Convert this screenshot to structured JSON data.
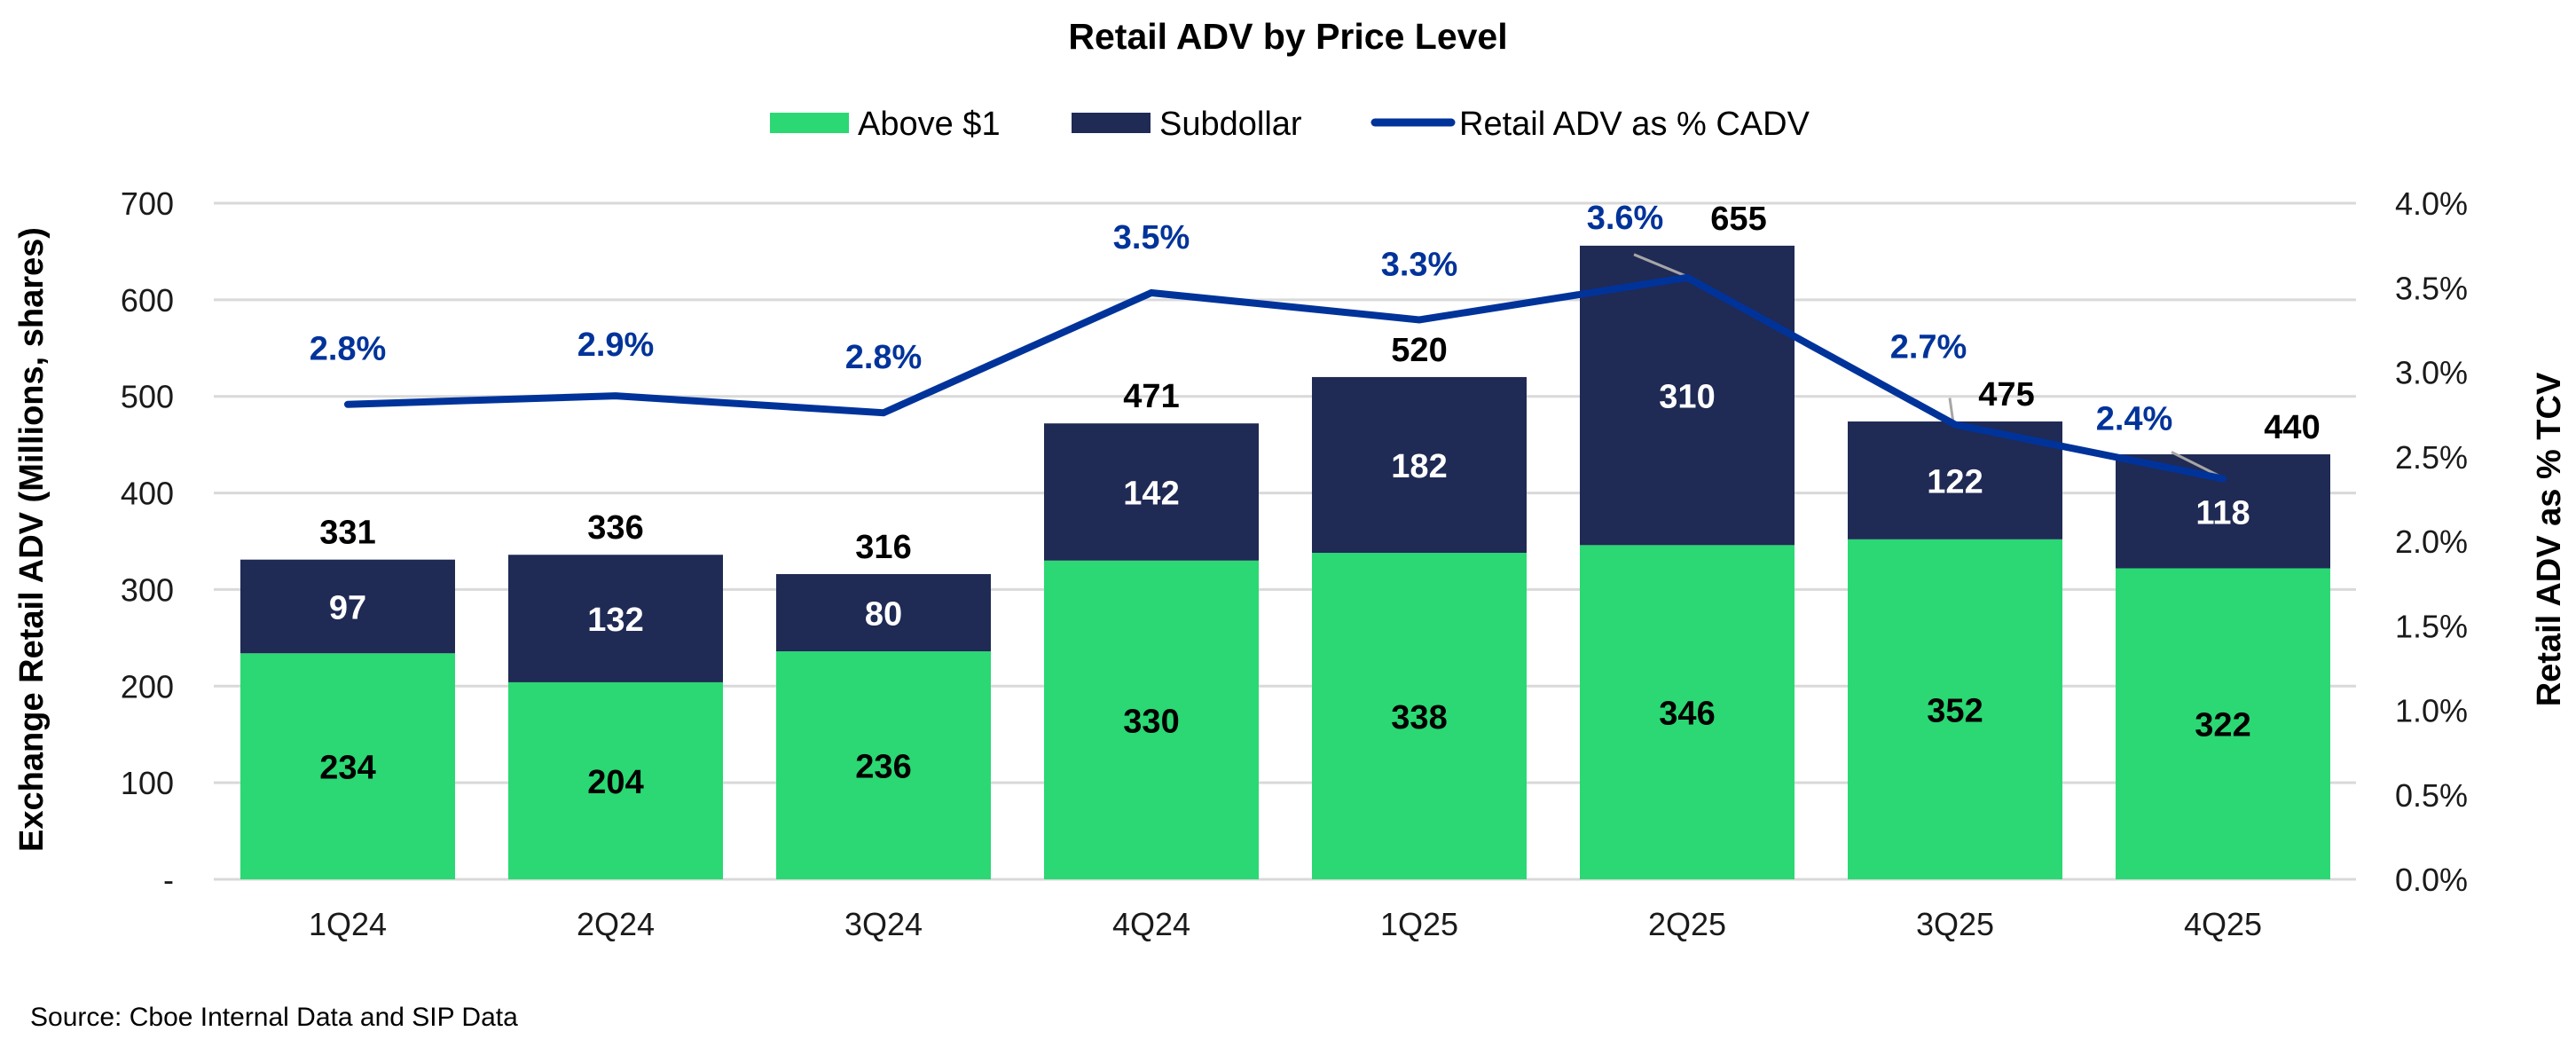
{
  "chart_data": {
    "type": "bar",
    "subtype": "stacked-bar-with-line",
    "title": "Retail ADV by Price Level",
    "categories": [
      "1Q24",
      "2Q24",
      "3Q24",
      "4Q24",
      "1Q25",
      "2Q25",
      "3Q25",
      "4Q25"
    ],
    "series": [
      {
        "name": "Above $1",
        "type": "bar",
        "axis": "left",
        "color": "#2BD873",
        "values": [
          234,
          204,
          236,
          330,
          338,
          346,
          352,
          322
        ]
      },
      {
        "name": "Subdollar",
        "type": "bar",
        "axis": "left",
        "color": "#1F2A55",
        "values": [
          97,
          132,
          80,
          142,
          182,
          310,
          122,
          118
        ]
      },
      {
        "name": "Retail ADV as % CADV",
        "type": "line",
        "axis": "right",
        "color": "#00339A",
        "values": [
          2.81,
          2.86,
          2.76,
          3.47,
          3.31,
          3.56,
          2.69,
          2.37
        ],
        "labels": [
          "2.8%",
          "2.9%",
          "2.8%",
          "3.5%",
          "3.3%",
          "3.6%",
          "2.7%",
          "2.4%"
        ]
      }
    ],
    "totals": [
      331,
      336,
      316,
      471,
      520,
      655,
      475,
      440
    ],
    "ylabel": "Exchange Retail ADV (Millions, shares)",
    "ylabel_right": "Retail ADV as % TCV",
    "ylim": [
      0,
      700
    ],
    "ylim_right": [
      0,
      4.0
    ],
    "yticks": [
      "-",
      "100",
      "200",
      "300",
      "400",
      "500",
      "600",
      "700"
    ],
    "yticks_right": [
      "0.0%",
      "0.5%",
      "1.0%",
      "1.5%",
      "2.0%",
      "2.5%",
      "3.0%",
      "3.5%",
      "4.0%"
    ],
    "grid": true,
    "legend_position": "top-center",
    "legend": [
      "Above $1",
      "Subdollar",
      "Retail ADV as % CADV"
    ]
  },
  "source": "Source: Cboe Internal Data and SIP Data"
}
